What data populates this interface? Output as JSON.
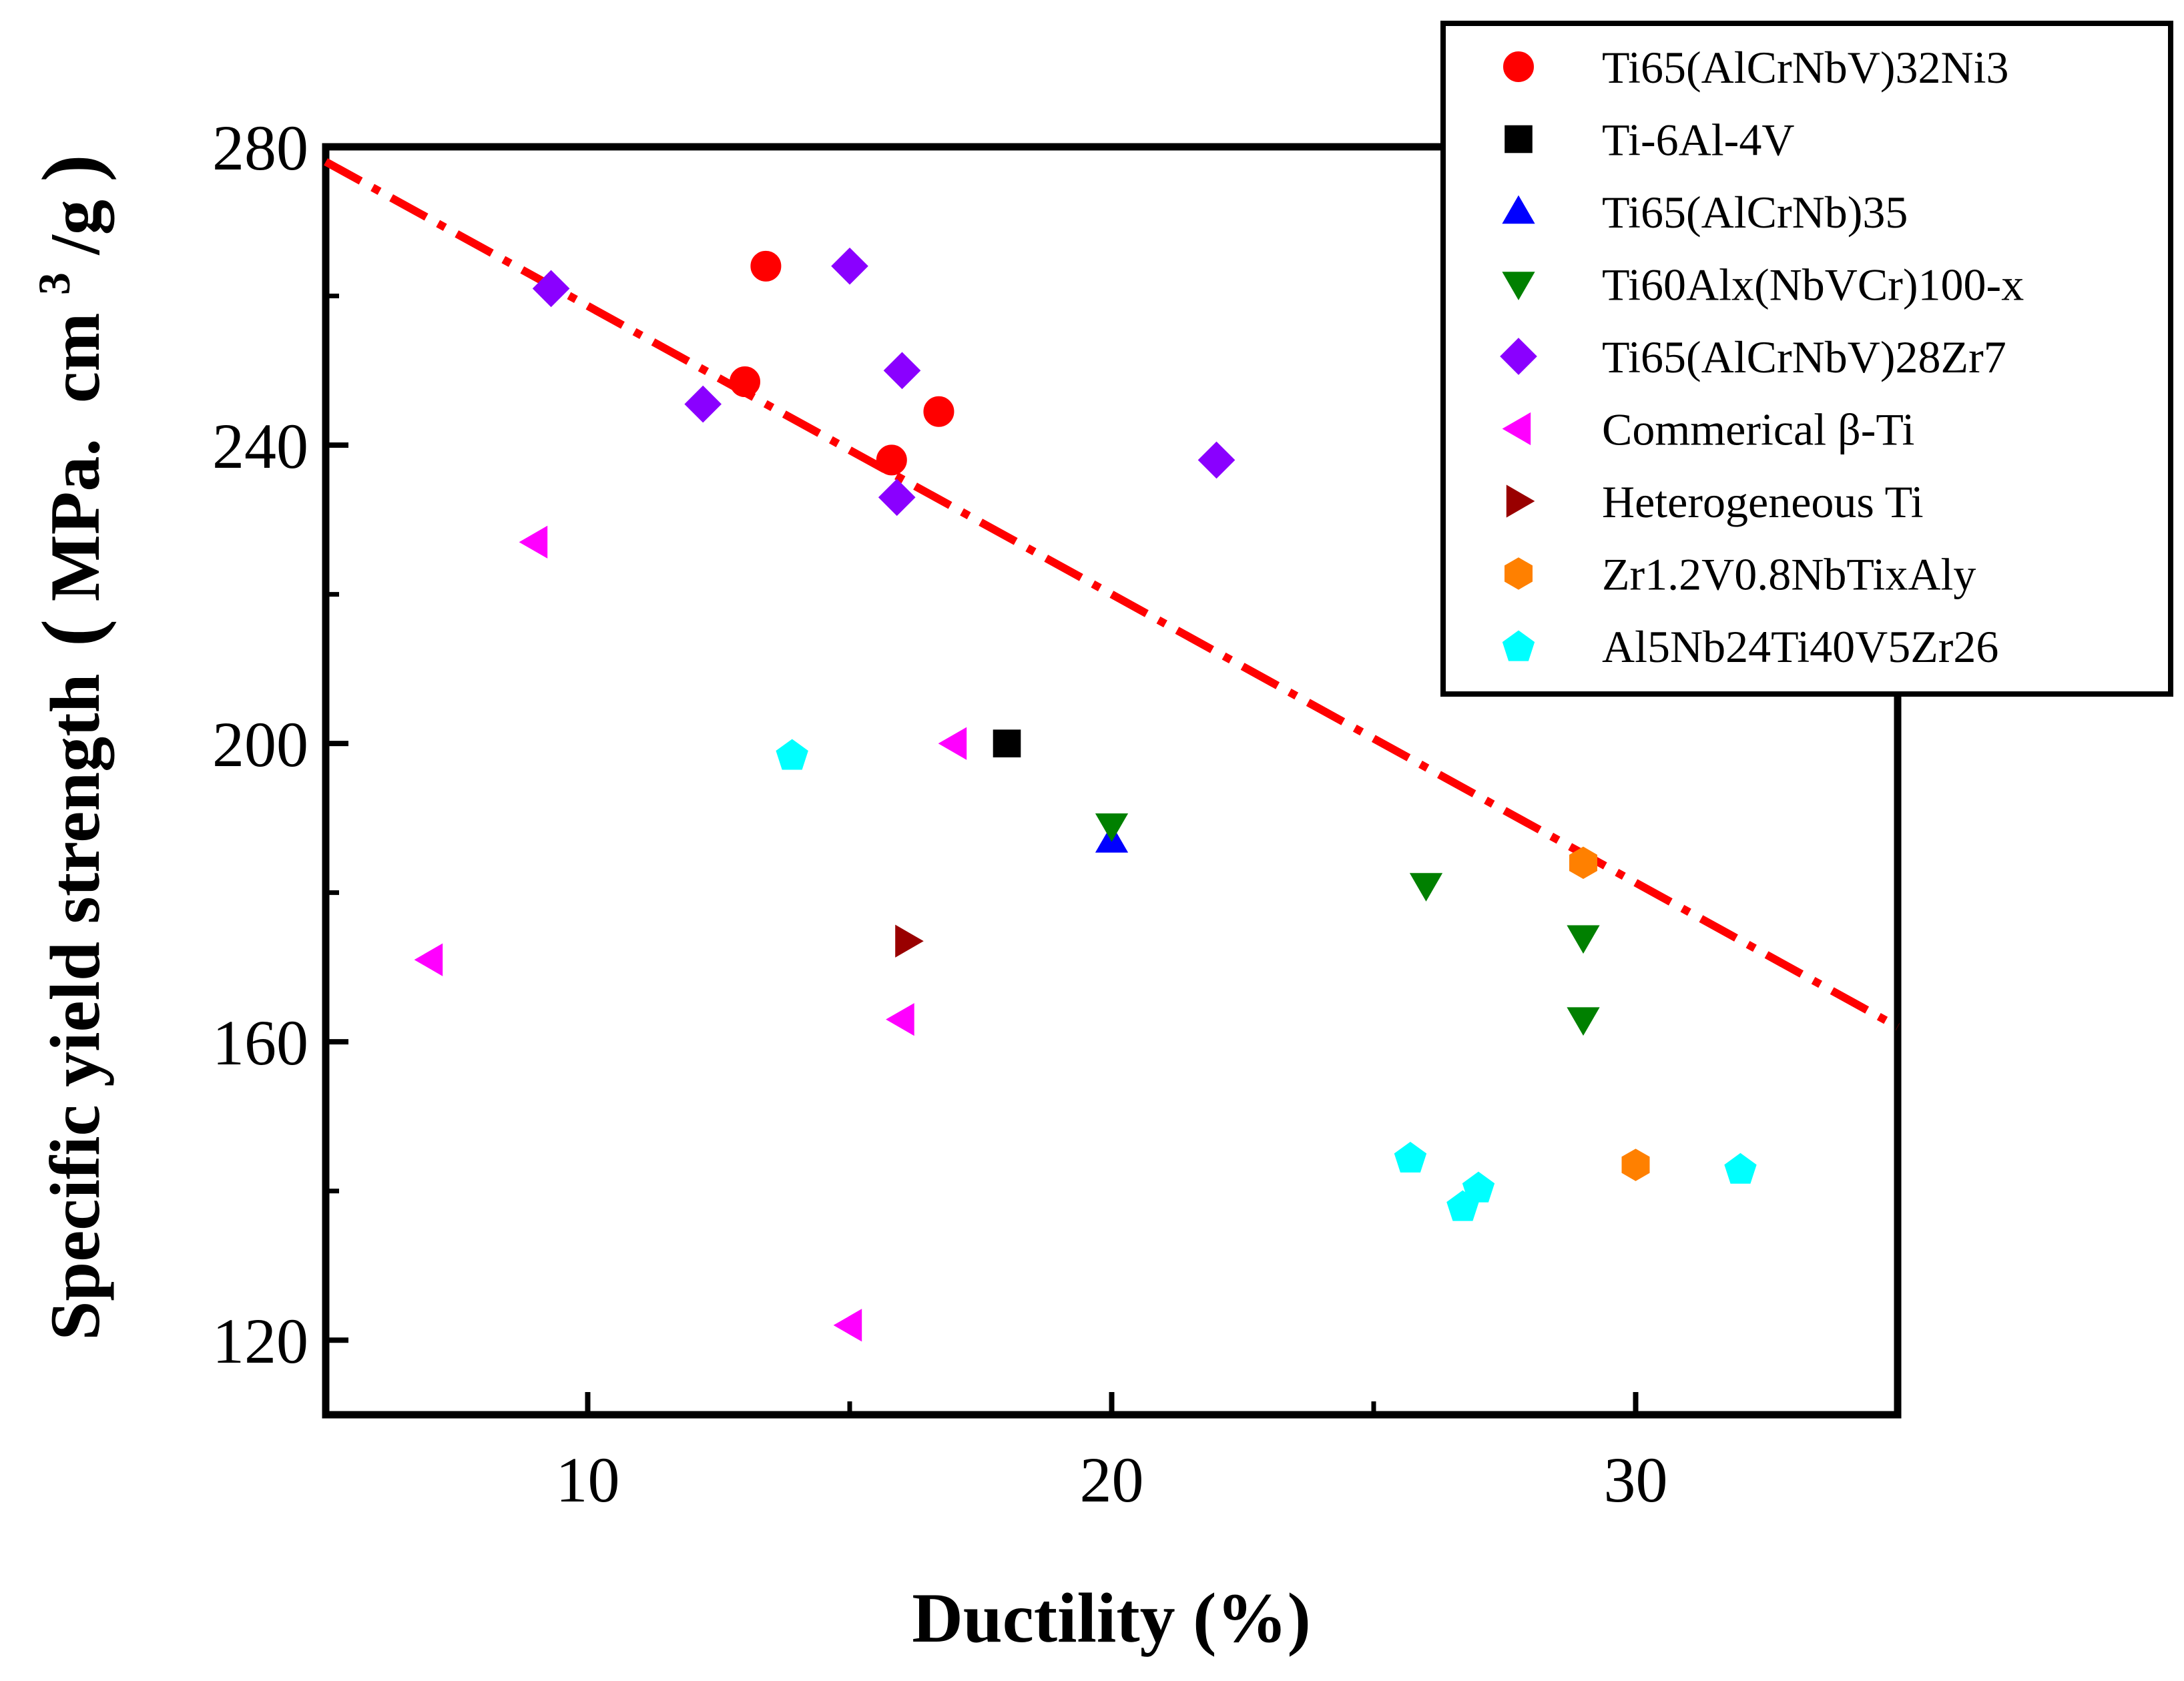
{
  "chart_data": {
    "type": "scatter",
    "xlabel": "Ductility (%)",
    "ylabel": "Specific yield strength (MPa.  cm3/g)",
    "ylabel_parts": {
      "main": "Specific yield strength",
      "paren_open": "(",
      "unit_a": "MPa.  cm",
      "unit_sup": "3",
      "unit_b": "/g",
      "paren_close": ")"
    },
    "xlim": [
      5,
      35
    ],
    "ylim": [
      110,
      280
    ],
    "x_ticks": [
      10,
      20,
      30
    ],
    "x_tick_labels": [
      "10",
      "20",
      "30"
    ],
    "y_ticks": [
      120,
      160,
      200,
      240,
      280
    ],
    "y_tick_labels": [
      "120",
      "160",
      "200",
      "240",
      "280"
    ],
    "grid": false,
    "legend_position": "top-right",
    "trend_line": {
      "style": "dash-dot",
      "color": "#ff0000",
      "points": [
        [
          5,
          278
        ],
        [
          35,
          162
        ]
      ]
    },
    "series": [
      {
        "name": "Ti65(AlCrNbV)32Ni3",
        "marker": "circle",
        "color": "#ff0000",
        "points": [
          [
            13.4,
            264
          ],
          [
            13.0,
            248.5
          ],
          [
            15.8,
            238
          ],
          [
            16.7,
            244.5
          ]
        ]
      },
      {
        "name": "Ti-6Al-4V",
        "marker": "square",
        "color": "#000000",
        "points": [
          [
            18,
            200
          ]
        ]
      },
      {
        "name": "Ti65(AlCrNb)35",
        "marker": "triangle-up",
        "color": "#0000ff",
        "points": [
          [
            20,
            187
          ]
        ]
      },
      {
        "name": "Ti60Alx(NbVCr)100-x",
        "marker": "triangle-down",
        "color": "#008000",
        "points": [
          [
            20,
            189
          ],
          [
            26,
            181
          ],
          [
            29,
            174
          ],
          [
            29,
            163
          ]
        ]
      },
      {
        "name": "Ti65(AlCrNbV)28Zr7",
        "marker": "diamond",
        "color": "#8a00ff",
        "points": [
          [
            9.3,
            261
          ],
          [
            12.2,
            245.5
          ],
          [
            15.0,
            264
          ],
          [
            16.0,
            250
          ],
          [
            15.9,
            233
          ],
          [
            22.0,
            238
          ]
        ]
      },
      {
        "name": "Commerical β-Ti",
        "marker": "triangle-left",
        "color": "#ff00ff",
        "points": [
          [
            9.0,
            227
          ],
          [
            7.0,
            171
          ],
          [
            15.0,
            122
          ],
          [
            16.0,
            163
          ],
          [
            17.0,
            200
          ]
        ]
      },
      {
        "name": "Heterogeneous Ti",
        "marker": "triangle-right",
        "color": "#990000",
        "points": [
          [
            16.1,
            173.5
          ]
        ]
      },
      {
        "name": "Zr1.2V0.8NbTixAly",
        "marker": "hexagon",
        "color": "#ff8000",
        "points": [
          [
            29.0,
            184
          ],
          [
            30.0,
            143.5
          ]
        ]
      },
      {
        "name": "Al5Nb24Ti40V5Zr26",
        "marker": "pentagon",
        "color": "#00ffff",
        "points": [
          [
            13.9,
            198.5
          ],
          [
            25.7,
            144.5
          ],
          [
            26.7,
            138
          ],
          [
            27.0,
            140.5
          ],
          [
            32.0,
            143
          ]
        ]
      }
    ]
  }
}
